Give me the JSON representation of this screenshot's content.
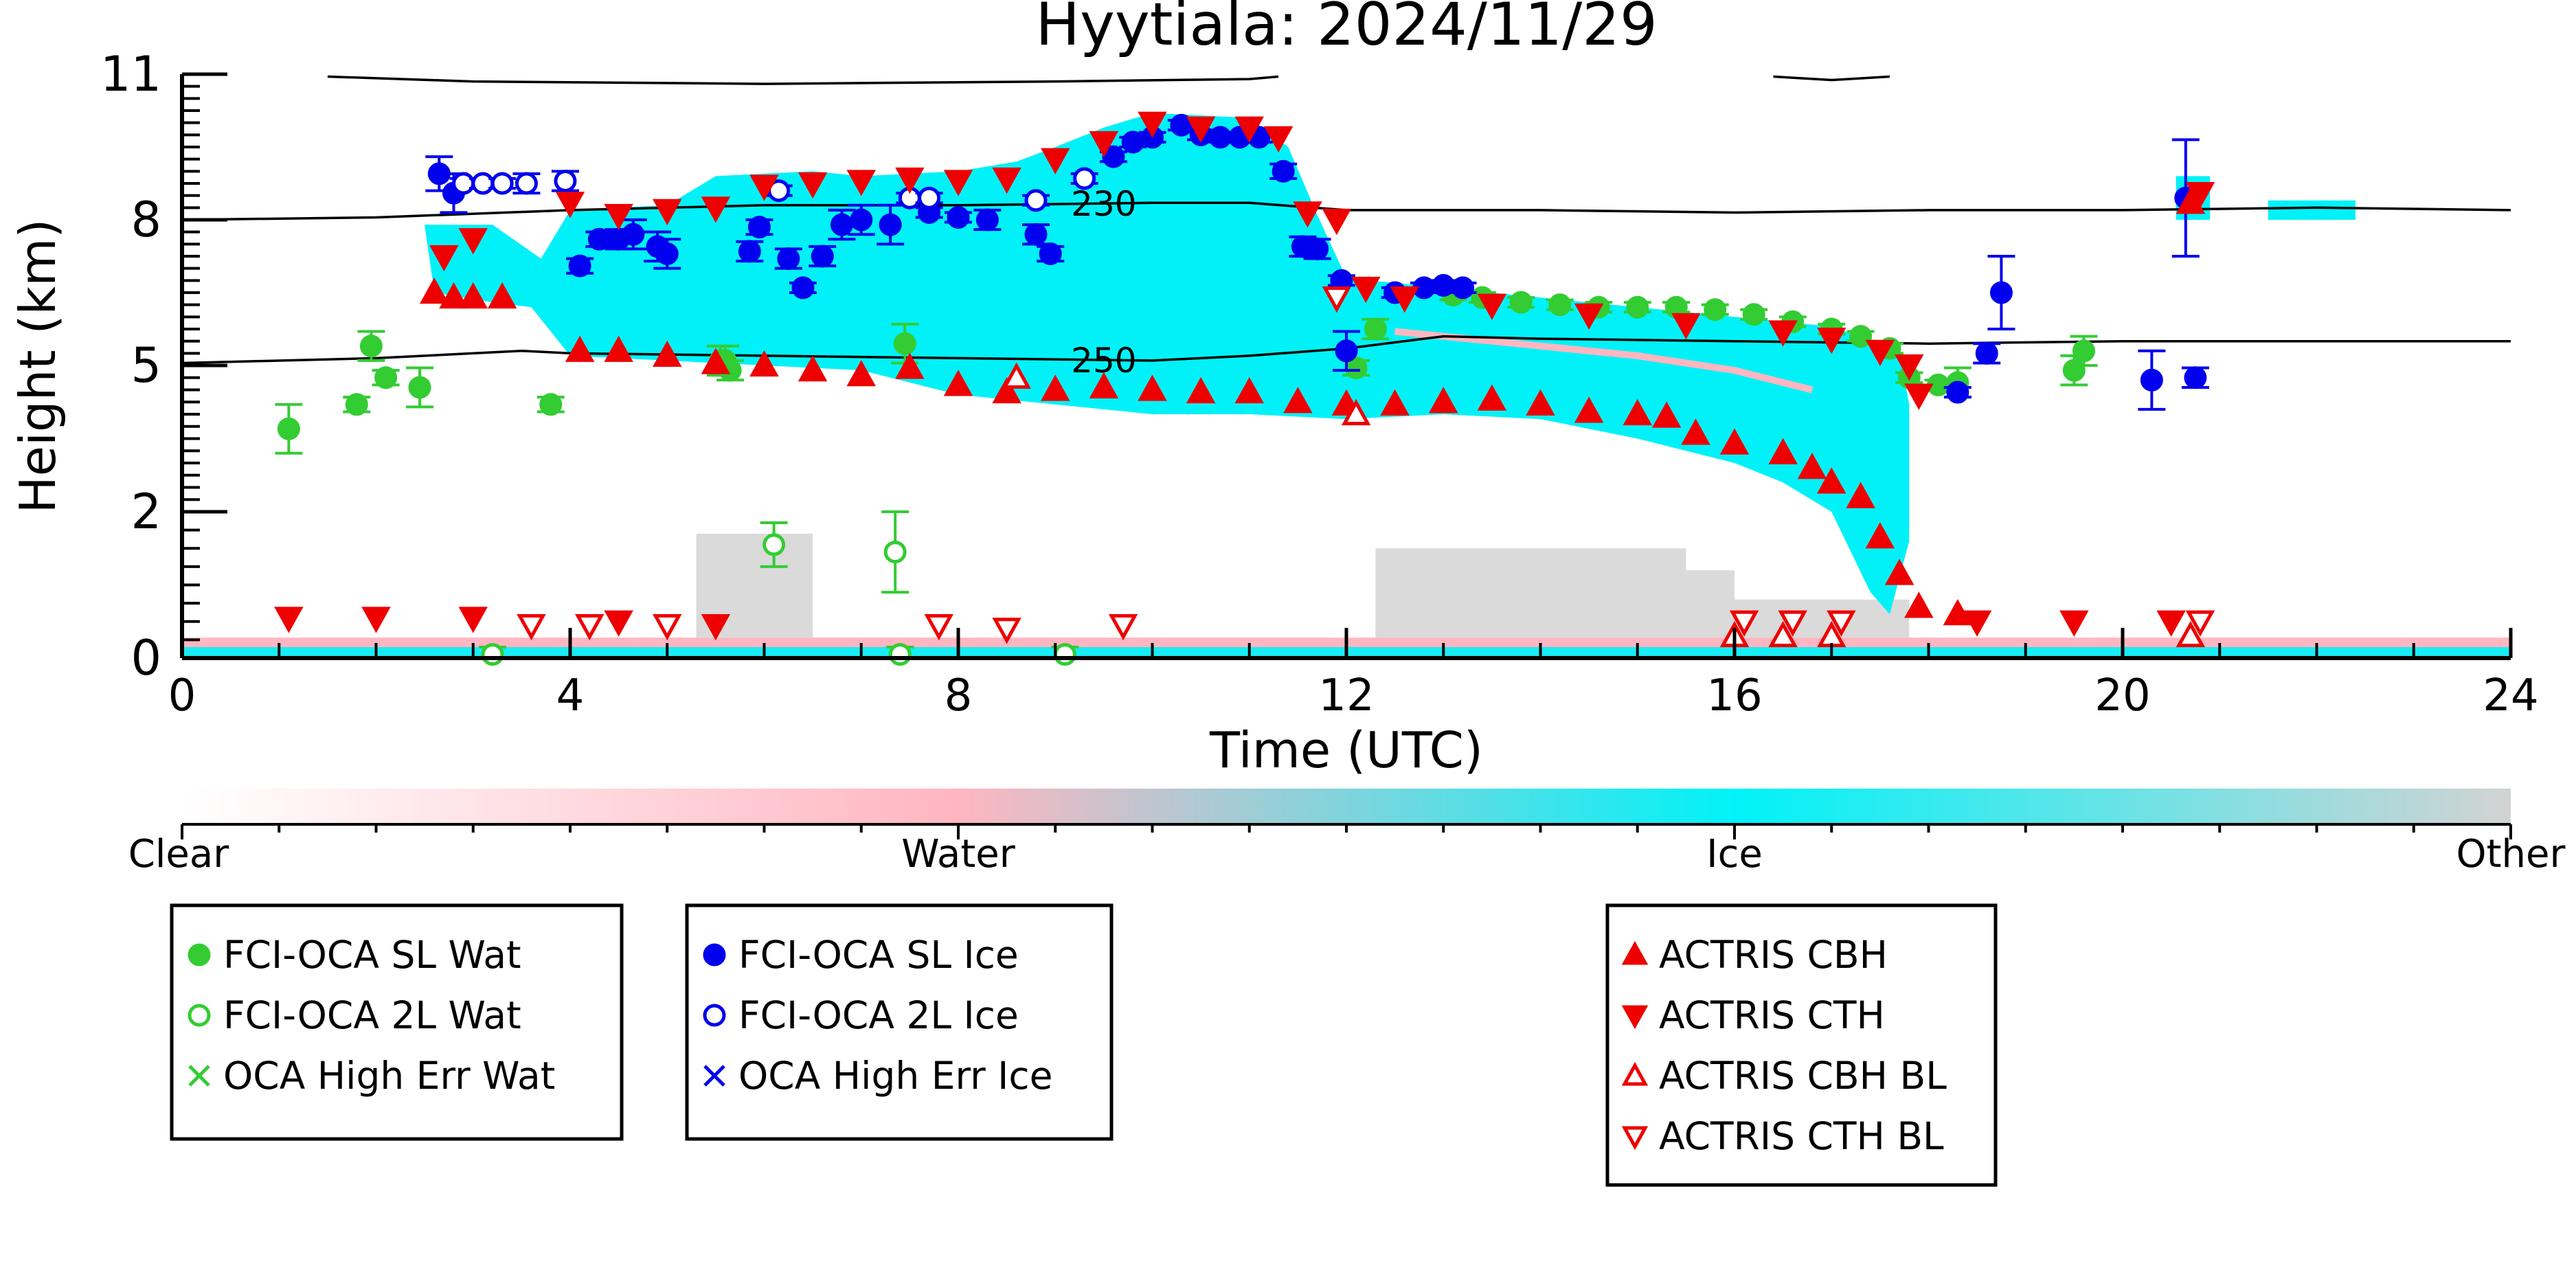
{
  "chart_data": {
    "type": "scatter",
    "title": "Hyytiala: 2024/11/29",
    "xlabel": "Time (UTC)",
    "ylabel": "Height (km)",
    "xlim": [
      0,
      24
    ],
    "ylim": [
      0,
      11
    ],
    "x_ticks": [
      0,
      4,
      8,
      12,
      16,
      20,
      24
    ],
    "y_ticks": [
      0,
      2,
      5,
      8,
      11
    ],
    "y_scale": "nonlinear (piecewise: 0-2 km, 2-5 km and 5-11 km segments)",
    "grid": false,
    "background_classes": {
      "description": "Hydrometeor target classification curtain behind the retrievals",
      "colorbar_labels": [
        "Clear",
        "Water",
        "Ice",
        "Other"
      ],
      "colors": {
        "clear": "#ffffff",
        "water": "#ffb6c1",
        "ice": "#00f2f8",
        "other": "#d3d3d3"
      }
    },
    "contours": [
      {
        "label": "230",
        "label_x": 9.5,
        "points": [
          [
            0,
            8.0
          ],
          [
            2,
            8.05
          ],
          [
            4,
            8.2
          ],
          [
            6,
            8.3
          ],
          [
            8,
            8.3
          ],
          [
            10,
            8.35
          ],
          [
            11,
            8.35
          ],
          [
            12,
            8.2
          ],
          [
            14,
            8.2
          ],
          [
            16,
            8.15
          ],
          [
            18,
            8.2
          ],
          [
            20,
            8.2
          ],
          [
            22,
            8.25
          ],
          [
            24,
            8.2
          ]
        ]
      },
      {
        "label": "250",
        "label_x": 9.5,
        "points": [
          [
            0,
            5.05
          ],
          [
            2,
            5.15
          ],
          [
            3.5,
            5.3
          ],
          [
            4,
            5.25
          ],
          [
            6,
            5.2
          ],
          [
            8,
            5.15
          ],
          [
            10,
            5.1
          ],
          [
            11,
            5.2
          ],
          [
            12,
            5.35
          ],
          [
            13,
            5.6
          ],
          [
            14,
            5.55
          ],
          [
            16,
            5.5
          ],
          [
            18,
            5.45
          ],
          [
            20,
            5.5
          ],
          [
            22,
            5.5
          ],
          [
            24,
            5.5
          ]
        ]
      },
      {
        "label": "",
        "points": [
          [
            1.5,
            10.95
          ],
          [
            3,
            10.85
          ],
          [
            6,
            10.8
          ],
          [
            9,
            10.85
          ],
          [
            11,
            10.9
          ],
          [
            11.3,
            10.95
          ]
        ]
      },
      {
        "label": "",
        "points": [
          [
            16.4,
            10.95
          ],
          [
            17,
            10.88
          ],
          [
            17.6,
            10.95
          ]
        ]
      }
    ],
    "series": [
      {
        "name": "FCI-OCA SL Wat",
        "marker": "filled-circle",
        "color": "#33cc33",
        "points": [
          [
            1.1,
            3.7,
            0.5
          ],
          [
            1.8,
            4.2,
            0.15
          ],
          [
            1.95,
            5.4,
            0.3
          ],
          [
            2.1,
            4.75,
            0.15
          ],
          [
            2.45,
            4.55,
            0.4
          ],
          [
            3.8,
            4.2,
            0.15
          ],
          [
            5.55,
            5.1,
            0.3
          ],
          [
            5.65,
            4.9,
            0.2
          ],
          [
            5.6,
            5.1,
            0.3
          ],
          [
            7.45,
            5.45,
            0.4
          ],
          [
            12.1,
            4.95,
            0.15
          ],
          [
            12.3,
            5.75,
            0.2
          ],
          [
            13.1,
            6.45,
            0.1
          ],
          [
            13.4,
            6.4,
            0.1
          ],
          [
            13.8,
            6.3,
            0.1
          ],
          [
            14.2,
            6.25,
            0.1
          ],
          [
            14.6,
            6.2,
            0.1
          ],
          [
            15.0,
            6.2,
            0.1
          ],
          [
            15.4,
            6.2,
            0.1
          ],
          [
            15.8,
            6.15,
            0.1
          ],
          [
            16.2,
            6.05,
            0.1
          ],
          [
            16.6,
            5.9,
            0.1
          ],
          [
            17.0,
            5.75,
            0.1
          ],
          [
            17.3,
            5.6,
            0.1
          ],
          [
            17.6,
            5.35,
            0.1
          ],
          [
            17.8,
            4.75,
            0.1
          ],
          [
            18.1,
            4.6,
            0.1
          ],
          [
            18.3,
            4.65,
            0.3
          ],
          [
            19.5,
            4.9,
            0.3
          ],
          [
            19.6,
            5.3,
            0.3
          ]
        ]
      },
      {
        "name": "FCI-OCA 2L Wat",
        "marker": "open-circle",
        "color": "#33cc33",
        "points": [
          [
            6.1,
            1.55,
            0.3
          ],
          [
            7.35,
            1.45,
            0.55
          ],
          [
            3.2,
            0.05,
            0.1
          ],
          [
            7.4,
            0.05,
            0.1
          ],
          [
            9.1,
            0.05,
            0.1
          ]
        ]
      },
      {
        "name": "OCA High Err Wat",
        "marker": "x",
        "color": "#33cc33",
        "points": []
      },
      {
        "name": "FCI-OCA SL Ice",
        "marker": "filled-circle",
        "color": "#0000ee",
        "points": [
          [
            2.65,
            8.95,
            0.35
          ],
          [
            2.8,
            8.55,
            0.4
          ],
          [
            4.1,
            7.05,
            0.15
          ],
          [
            4.3,
            7.6,
            0.15
          ],
          [
            4.5,
            7.6,
            0.2
          ],
          [
            4.65,
            7.7,
            0.3
          ],
          [
            4.9,
            7.45,
            0.3
          ],
          [
            5.0,
            7.3,
            0.3
          ],
          [
            5.85,
            7.35,
            0.2
          ],
          [
            5.95,
            7.85,
            0.15
          ],
          [
            6.25,
            7.2,
            0.2
          ],
          [
            6.4,
            6.6,
            0.1
          ],
          [
            6.6,
            7.25,
            0.2
          ],
          [
            6.8,
            7.9,
            0.3
          ],
          [
            7.0,
            8.0,
            0.3
          ],
          [
            7.3,
            7.9,
            0.4
          ],
          [
            7.7,
            8.15,
            0.1
          ],
          [
            8.0,
            8.05,
            0.1
          ],
          [
            8.3,
            8.0,
            0.2
          ],
          [
            8.8,
            7.7,
            0.2
          ],
          [
            8.95,
            7.3,
            0.15
          ],
          [
            9.6,
            9.3,
            0.1
          ],
          [
            9.8,
            9.6,
            0.1
          ],
          [
            10.0,
            9.7,
            0.1
          ],
          [
            10.3,
            9.95,
            0.1
          ],
          [
            10.5,
            9.75,
            0.1
          ],
          [
            10.7,
            9.7,
            0.1
          ],
          [
            10.9,
            9.7,
            0.1
          ],
          [
            11.1,
            9.7,
            0.1
          ],
          [
            11.35,
            9.0,
            0.15
          ],
          [
            11.55,
            7.45,
            0.2
          ],
          [
            11.7,
            7.4,
            0.2
          ],
          [
            11.95,
            6.75,
            0.1
          ],
          [
            12.0,
            5.3,
            0.4
          ],
          [
            12.5,
            6.5,
            0.1
          ],
          [
            12.8,
            6.6,
            0.1
          ],
          [
            13.0,
            6.65,
            0.1
          ],
          [
            13.2,
            6.6,
            0.1
          ],
          [
            18.3,
            4.45,
            0.1
          ],
          [
            18.6,
            5.25,
            0.2
          ],
          [
            18.75,
            6.5,
            0.75
          ],
          [
            20.3,
            4.7,
            0.6
          ],
          [
            20.65,
            8.45,
            1.2
          ],
          [
            20.75,
            4.75,
            0.2
          ]
        ]
      },
      {
        "name": "FCI-OCA 2L Ice",
        "marker": "open-circle",
        "color": "#0000ee",
        "points": [
          [
            2.9,
            8.75,
            0.1
          ],
          [
            3.1,
            8.75,
            0.1
          ],
          [
            3.3,
            8.75,
            0.1
          ],
          [
            3.55,
            8.75,
            0.2
          ],
          [
            3.95,
            8.8,
            0.2
          ],
          [
            6.15,
            8.6,
            0.1
          ],
          [
            7.5,
            8.45,
            0.1
          ],
          [
            7.7,
            8.45,
            0.1
          ],
          [
            8.8,
            8.4,
            0.1
          ],
          [
            9.3,
            8.85,
            0.1
          ]
        ]
      },
      {
        "name": "OCA High Err Ice",
        "marker": "x",
        "color": "#0000ee",
        "points": []
      },
      {
        "name": "ACTRIS CBH",
        "marker": "triangle-up",
        "color": "#ee0000",
        "points": [
          [
            2.6,
            6.5
          ],
          [
            2.8,
            6.4
          ],
          [
            3.0,
            6.4
          ],
          [
            3.3,
            6.4
          ],
          [
            4.1,
            5.3
          ],
          [
            4.5,
            5.3
          ],
          [
            5.0,
            5.2
          ],
          [
            5.5,
            5.05
          ],
          [
            6.0,
            5.0
          ],
          [
            6.5,
            4.9
          ],
          [
            7.0,
            4.8
          ],
          [
            7.5,
            4.95
          ],
          [
            8.0,
            4.6
          ],
          [
            8.5,
            4.45
          ],
          [
            9.0,
            4.5
          ],
          [
            9.5,
            4.55
          ],
          [
            10.0,
            4.5
          ],
          [
            10.5,
            4.45
          ],
          [
            11.0,
            4.45
          ],
          [
            11.5,
            4.25
          ],
          [
            12.0,
            4.2
          ],
          [
            12.5,
            4.2
          ],
          [
            13.0,
            4.25
          ],
          [
            13.5,
            4.3
          ],
          [
            14.0,
            4.2
          ],
          [
            14.5,
            4.05
          ],
          [
            15.0,
            4.0
          ],
          [
            15.3,
            3.95
          ],
          [
            15.6,
            3.6
          ],
          [
            16.0,
            3.4
          ],
          [
            16.5,
            3.2
          ],
          [
            16.8,
            2.9
          ],
          [
            17.0,
            2.6
          ],
          [
            17.3,
            2.3
          ],
          [
            17.5,
            1.65
          ],
          [
            17.7,
            1.15
          ],
          [
            17.9,
            0.7
          ],
          [
            18.3,
            0.6
          ],
          [
            20.7,
            8.35
          ]
        ]
      },
      {
        "name": "ACTRIS CTH",
        "marker": "triangle-down",
        "color": "#ee0000",
        "points": [
          [
            2.7,
            7.25
          ],
          [
            3.0,
            7.6
          ],
          [
            4.0,
            8.35
          ],
          [
            4.5,
            8.1
          ],
          [
            5.0,
            8.2
          ],
          [
            5.5,
            8.25
          ],
          [
            6.0,
            8.7
          ],
          [
            6.5,
            8.75
          ],
          [
            7.0,
            8.8
          ],
          [
            7.5,
            8.85
          ],
          [
            8.0,
            8.8
          ],
          [
            8.5,
            8.85
          ],
          [
            9.0,
            9.25
          ],
          [
            9.5,
            9.6
          ],
          [
            10.0,
            10.0
          ],
          [
            10.5,
            9.9
          ],
          [
            11.0,
            9.9
          ],
          [
            11.3,
            9.7
          ],
          [
            11.6,
            8.15
          ],
          [
            11.9,
            8.0
          ],
          [
            12.2,
            6.6
          ],
          [
            12.6,
            6.4
          ],
          [
            13.5,
            6.25
          ],
          [
            14.5,
            6.05
          ],
          [
            15.5,
            5.85
          ],
          [
            16.5,
            5.7
          ],
          [
            17.0,
            5.55
          ],
          [
            17.5,
            5.3
          ],
          [
            17.8,
            5.0
          ],
          [
            17.9,
            4.4
          ],
          [
            1.1,
            0.55
          ],
          [
            2.0,
            0.55
          ],
          [
            3.0,
            0.55
          ],
          [
            4.5,
            0.5
          ],
          [
            5.5,
            0.45
          ],
          [
            18.5,
            0.5
          ],
          [
            19.5,
            0.5
          ],
          [
            20.5,
            0.5
          ],
          [
            20.8,
            8.55
          ]
        ]
      },
      {
        "name": "ACTRIS CBH BL",
        "marker": "open-triangle-up",
        "color": "#ee0000",
        "points": [
          [
            8.6,
            4.75
          ],
          [
            12.1,
            4.0
          ],
          [
            16.0,
            0.3
          ],
          [
            16.5,
            0.3
          ],
          [
            17.0,
            0.3
          ],
          [
            20.7,
            0.3
          ]
        ]
      },
      {
        "name": "ACTRIS CTH BL",
        "marker": "open-triangle-down",
        "color": "#ee0000",
        "points": [
          [
            3.6,
            0.45
          ],
          [
            4.2,
            0.45
          ],
          [
            5.0,
            0.45
          ],
          [
            7.8,
            0.45
          ],
          [
            8.5,
            0.4
          ],
          [
            9.7,
            0.45
          ],
          [
            11.9,
            6.4
          ],
          [
            16.1,
            0.5
          ],
          [
            16.6,
            0.5
          ],
          [
            17.1,
            0.5
          ],
          [
            20.8,
            0.5
          ]
        ]
      }
    ],
    "legends": [
      {
        "entries": [
          "FCI-OCA SL Wat",
          "FCI-OCA 2L Wat",
          "OCA High Err Wat"
        ]
      },
      {
        "entries": [
          "FCI-OCA SL Ice",
          "FCI-OCA 2L Ice",
          "OCA High Err Ice"
        ]
      },
      {
        "entries": [
          "ACTRIS CBH",
          "ACTRIS CTH",
          "ACTRIS CBH BL",
          "ACTRIS CTH BL"
        ]
      }
    ]
  }
}
